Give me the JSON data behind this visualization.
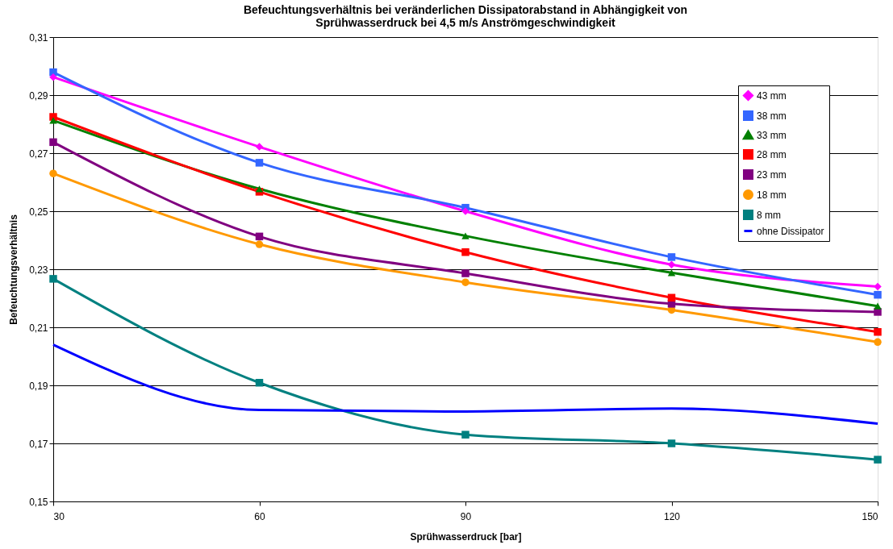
{
  "chart_data": {
    "type": "line",
    "title": "Befeuchtungsverhältnis bei veränderlichen Dissipatorabstand in Abhängigkeit von\nSprühwasserdruck bei 4,5 m/s Anströmgeschwindigkeit",
    "xlabel": "Sprühwasserdruck [bar]",
    "ylabel": "Befeuchtungsverhältnis",
    "x": [
      30,
      60,
      90,
      120,
      150
    ],
    "series": [
      {
        "name": "43 mm",
        "color": "#ff00ff",
        "marker": "diamond",
        "values": [
          0.2962,
          0.2722,
          0.25,
          0.2316,
          0.224
        ]
      },
      {
        "name": "38 mm",
        "color": "#3366ff",
        "marker": "square",
        "values": [
          0.2979,
          0.2667,
          0.2512,
          0.2342,
          0.2212
        ]
      },
      {
        "name": "33 mm",
        "color": "#008000",
        "marker": "triangle",
        "values": [
          0.2813,
          0.2577,
          0.2415,
          0.2288,
          0.2173
        ]
      },
      {
        "name": "28 mm",
        "color": "#ff0000",
        "marker": "square",
        "values": [
          0.2825,
          0.2567,
          0.2359,
          0.2202,
          0.2084
        ]
      },
      {
        "name": "23 mm",
        "color": "#800080",
        "marker": "square",
        "values": [
          0.2738,
          0.2413,
          0.2286,
          0.2181,
          0.2153
        ]
      },
      {
        "name": "18 mm",
        "color": "#ff9900",
        "marker": "circle",
        "values": [
          0.263,
          0.2386,
          0.2255,
          0.216,
          0.2049
        ]
      },
      {
        "name": "8 mm",
        "color": "#008080",
        "marker": "square",
        "values": [
          0.2267,
          0.1909,
          0.173,
          0.17,
          0.1644
        ]
      },
      {
        "name": "ohne Dissipator",
        "color": "#0000ff",
        "marker": "none",
        "values": [
          0.204,
          0.1815,
          0.181,
          0.182,
          0.1768
        ]
      }
    ],
    "xlim": [
      30,
      150
    ],
    "xticks": [
      30,
      60,
      90,
      120,
      150
    ],
    "ylim": [
      0.15,
      0.31
    ],
    "yticks": [
      {
        "value": 0.15,
        "label": "0,15"
      },
      {
        "value": 0.17,
        "label": "0,17"
      },
      {
        "value": 0.19,
        "label": "0,19"
      },
      {
        "value": 0.21,
        "label": "0,21"
      },
      {
        "value": 0.23,
        "label": "0,23"
      },
      {
        "value": 0.25,
        "label": "0,25"
      },
      {
        "value": 0.27,
        "label": "0,27"
      },
      {
        "value": 0.29,
        "label": "0,29"
      },
      {
        "value": 0.31,
        "label": "0,31"
      }
    ],
    "grid": "y",
    "legend": "top right",
    "line_style": "solid"
  }
}
